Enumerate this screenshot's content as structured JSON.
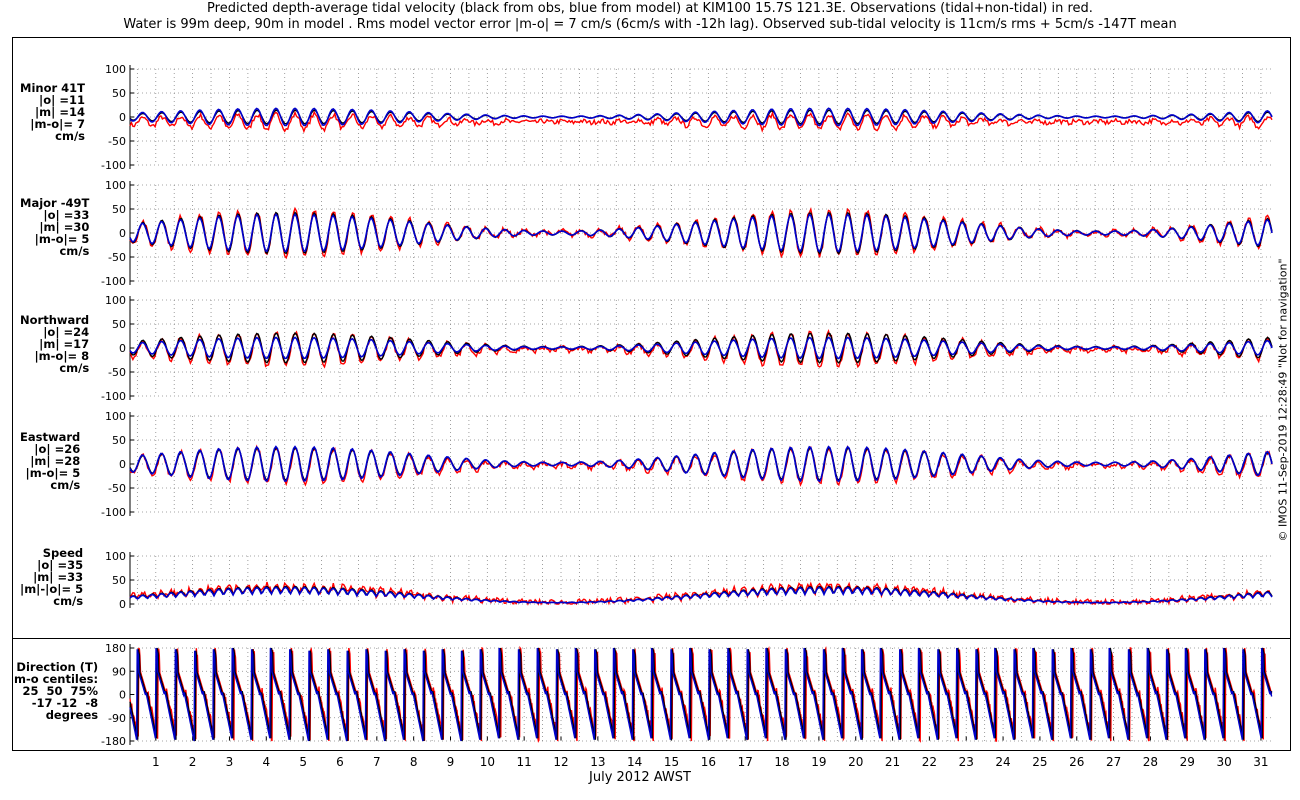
{
  "header": {
    "line1": "Predicted depth-average tidal velocity (black from obs, blue from model) at KIM100 15.7S 121.3E. Observations (tidal+non-tidal) in red.",
    "line2": "Water is 99m deep, 90m in model . Rms model vector error |m-o| = 7 cm/s (6cm/s with -12h lag). Observed sub-tidal velocity is 11cm/s rms + 5cm/s -147T mean"
  },
  "credit": "© IMOS 11-Sep-2019 12:28:49  \"Not for navigation\"",
  "chart_data": {
    "type": "line",
    "xlabel": "July 2012 AWST",
    "x_ticks": [
      "1",
      "2",
      "3",
      "4",
      "5",
      "6",
      "7",
      "8",
      "9",
      "10",
      "11",
      "12",
      "13",
      "14",
      "15",
      "16",
      "17",
      "18",
      "19",
      "20",
      "21",
      "22",
      "23",
      "24",
      "25",
      "26",
      "27",
      "28",
      "29",
      "30",
      "31"
    ],
    "xlim": [
      0.3,
      31.3
    ],
    "series_legend": [
      "black from obs",
      "blue from model",
      "red observations (tidal+non-tidal)"
    ],
    "colors": {
      "obs_tidal": "#000000",
      "model": "#0000cc",
      "obs_total": "#ff0000"
    },
    "panels": [
      {
        "name": "minor",
        "label": [
          "Minor 41T",
          "|o| =11",
          "|m| =14",
          "|m-o|= 7",
          "cm/s"
        ],
        "ylim": [
          -100,
          100
        ],
        "yticks": [
          "100",
          "50",
          "0",
          "-50",
          "-100"
        ],
        "amplitude": {
          "obs_tidal": 11,
          "model": 14
        },
        "offset_red": -10
      },
      {
        "name": "major",
        "label": [
          "Major -49T",
          "|o| =33",
          "|m| =30",
          "|m-o|= 5",
          "cm/s"
        ],
        "ylim": [
          -100,
          100
        ],
        "yticks": [
          "100",
          "50",
          "0",
          "-50",
          "-100"
        ],
        "amplitude": {
          "obs_tidal": 33,
          "model": 30
        },
        "offset_red": 0
      },
      {
        "name": "northward",
        "label": [
          "Northward",
          "|o| =24",
          "|m| =17",
          "|m-o|= 8",
          "cm/s"
        ],
        "ylim": [
          -100,
          100
        ],
        "yticks": [
          "100",
          "50",
          "0",
          "-50",
          "-100"
        ],
        "amplitude": {
          "obs_tidal": 24,
          "model": 17
        },
        "offset_red": -3
      },
      {
        "name": "eastward",
        "label": [
          "Eastward",
          "|o| =26",
          "|m| =28",
          "|m-o|= 5",
          "cm/s"
        ],
        "ylim": [
          -100,
          100
        ],
        "yticks": [
          "100",
          "50",
          "0",
          "-50",
          "-100"
        ],
        "amplitude": {
          "obs_tidal": 26,
          "model": 28
        },
        "offset_red": -3
      },
      {
        "name": "speed",
        "label": [
          "Speed",
          "|o| =35",
          "|m| =33",
          "|m|-|o|= 5",
          "cm/s"
        ],
        "ylim": [
          0,
          100
        ],
        "yticks": [
          "100",
          "50",
          "0"
        ],
        "amplitude": {
          "obs_tidal": 35,
          "model": 33
        },
        "offset_red": 0
      },
      {
        "name": "direction",
        "label": [
          "Direction (T)",
          "m-o centiles:",
          "25  50  75%",
          "-17 -12  -8",
          "degrees"
        ],
        "ylim": [
          -180,
          180
        ],
        "yticks": [
          "180",
          "90",
          "0",
          "-90",
          "-180"
        ],
        "centiles": {
          "25": -17,
          "50": -12,
          "75": -8
        }
      }
    ]
  }
}
